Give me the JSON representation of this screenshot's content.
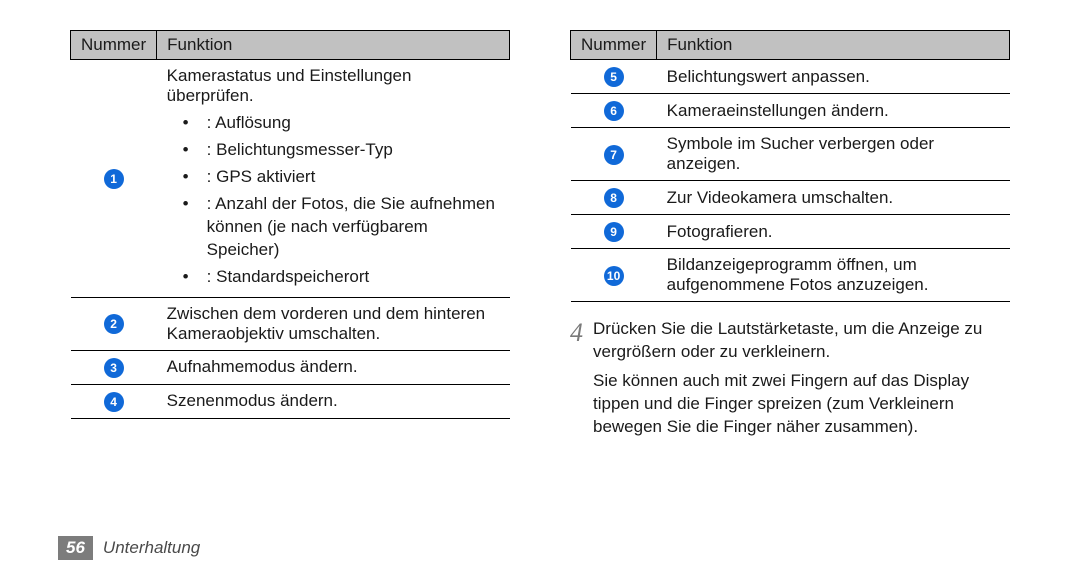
{
  "colors": {
    "header_bg": "#c1c1c1",
    "circle_bg": "#1069d8",
    "circle_fg": "#ffffff",
    "text": "#1a1a1a",
    "step_num": "#7a7a7a",
    "page_num_bg": "#7c7c7c",
    "page_num_fg": "#ffffff",
    "section_text": "#4a4a4a",
    "border": "#000000"
  },
  "left_table": {
    "columns": [
      "Nummer",
      "Funktion"
    ],
    "rows": [
      {
        "num": "1",
        "text": "Kamerastatus und Einstellungen überprüfen.",
        "bullets": [
          " : Auflösung",
          " : Belichtungsmesser-Typ",
          " : GPS aktiviert",
          " : Anzahl der Fotos, die Sie aufnehmen können (je nach verfügbarem Speicher)",
          " : Standardspeicherort"
        ]
      },
      {
        "num": "2",
        "text": "Zwischen dem vorderen und dem hinteren Kameraobjektiv umschalten."
      },
      {
        "num": "3",
        "text": "Aufnahmemodus ändern."
      },
      {
        "num": "4",
        "text": "Szenenmodus ändern."
      }
    ]
  },
  "right_table": {
    "columns": [
      "Nummer",
      "Funktion"
    ],
    "rows": [
      {
        "num": "5",
        "text": "Belichtungswert anpassen."
      },
      {
        "num": "6",
        "text": "Kameraeinstellungen ändern."
      },
      {
        "num": "7",
        "text": "Symbole im Sucher verbergen oder anzeigen."
      },
      {
        "num": "8",
        "text": "Zur Videokamera umschalten."
      },
      {
        "num": "9",
        "text": "Fotografieren."
      },
      {
        "num": "10",
        "text": "Bildanzeigeprogramm öffnen, um aufgenommene Fotos anzuzeigen."
      }
    ]
  },
  "step": {
    "num": "4",
    "p1": "Drücken Sie die Lautstärketaste, um die Anzeige zu vergrößern oder zu verkleinern.",
    "p2": "Sie können auch mit zwei Fingern auf das Display tippen und die Finger spreizen (zum Verkleinern bewegen Sie die Finger näher zusammen)."
  },
  "footer": {
    "page": "56",
    "section": "Unterhaltung"
  }
}
